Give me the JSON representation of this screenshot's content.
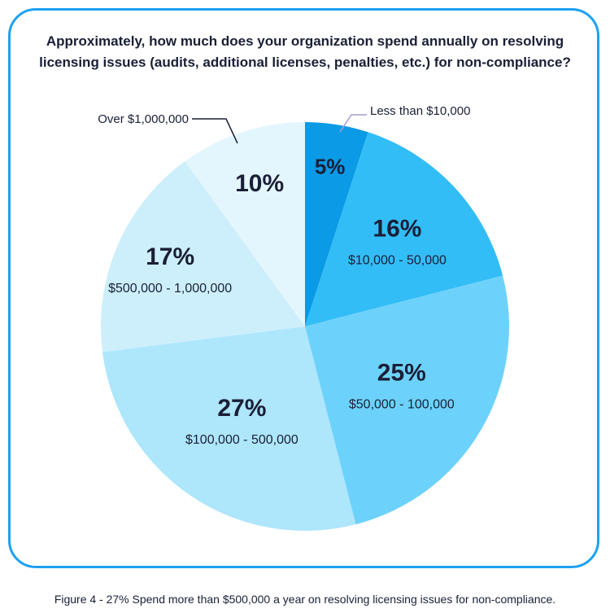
{
  "title": "Approximately, how much does your organization spend annually on resolving licensing issues (audits, additional licenses, penalties, etc.) for non-compliance?",
  "caption": "Figure 4 - 27% Spend more than $500,000 a year on resolving licensing issues for non-compliance.",
  "colors": {
    "border": "#1da1f2",
    "label": "#1a1f36",
    "slices": [
      "#0a9ae6",
      "#33bdf6",
      "#6dd2fb",
      "#aee6fc",
      "#cdeffc",
      "#e4f6fd"
    ]
  },
  "chart_data": {
    "type": "pie",
    "title": "Approximately, how much does your organization spend annually on resolving licensing issues (audits, additional licenses, penalties, etc.) for non-compliance?",
    "slices": [
      {
        "label": "Less than $10,000",
        "value": 5,
        "pct_label": "5%"
      },
      {
        "label": "$10,000 - 50,000",
        "value": 16,
        "pct_label": "16%"
      },
      {
        "label": "$50,000 - 100,000",
        "value": 25,
        "pct_label": "25%"
      },
      {
        "label": "$100,000 - 500,000",
        "value": 27,
        "pct_label": "27%"
      },
      {
        "label": "$500,000 - 1,000,000",
        "value": 17,
        "pct_label": "17%"
      },
      {
        "label": "Over $1,000,000",
        "value": 10,
        "pct_label": "10%"
      }
    ]
  }
}
